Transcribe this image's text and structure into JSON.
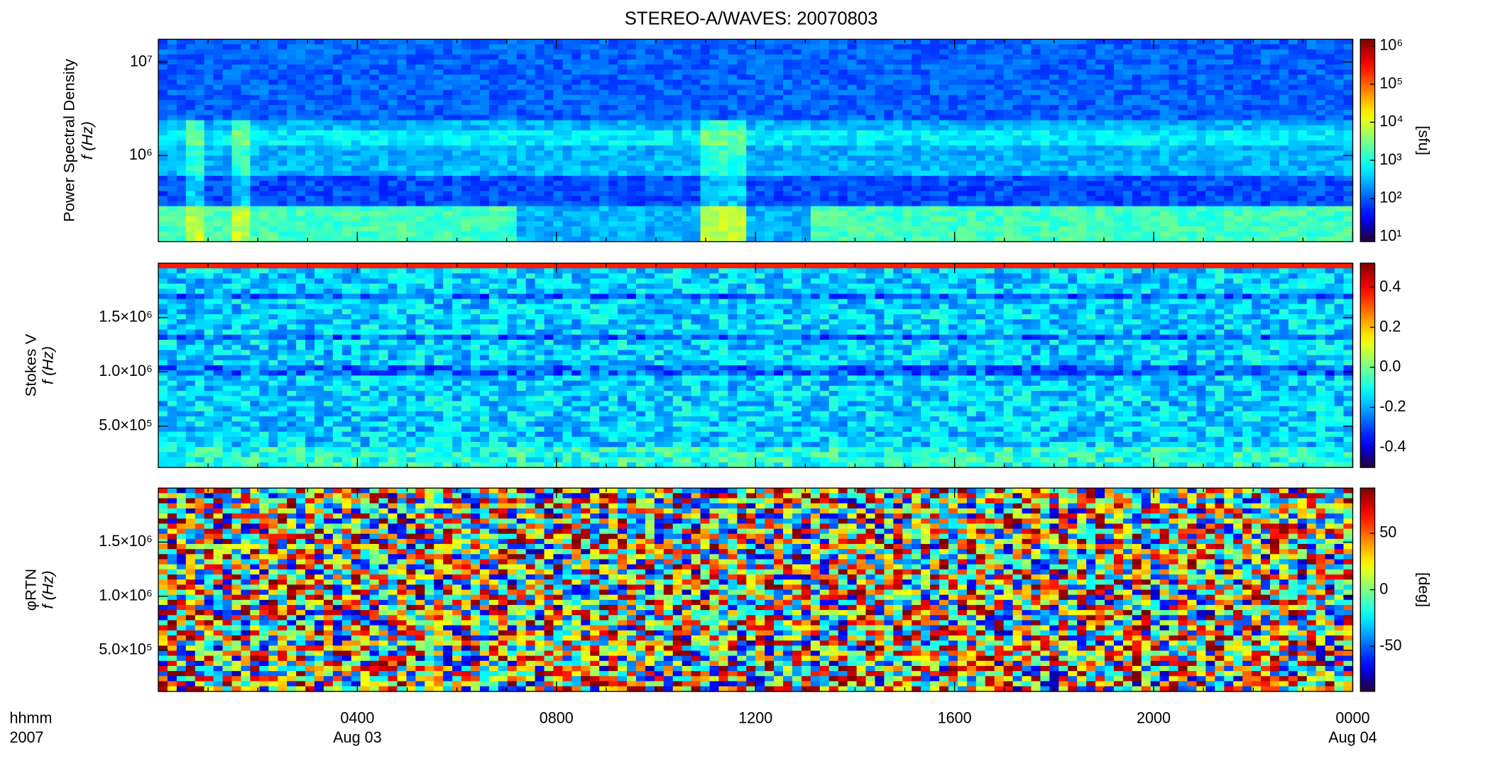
{
  "title": "STEREO-A/WAVES: 20070803",
  "chart_data": [
    {
      "type": "heatmap",
      "ylabel": [
        "Power Spectral Density",
        "f (Hz)"
      ],
      "ylog": true,
      "ylim": [
        120000,
        17500000
      ],
      "yticks": [
        {
          "value": 1000000,
          "label": "10⁶"
        },
        {
          "value": 10000000,
          "label": "10⁷"
        }
      ],
      "xlim": [
        0,
        24
      ],
      "clog": true,
      "clim": [
        7.4,
        1500000
      ],
      "cticks": [
        {
          "value": 10,
          "label": "10¹"
        },
        {
          "value": 100,
          "label": "10²"
        },
        {
          "value": 1000,
          "label": "10³"
        },
        {
          "value": 10000,
          "label": "10⁴"
        },
        {
          "value": 100000,
          "label": "10⁵"
        },
        {
          "value": 1000000,
          "label": "10⁶"
        }
      ],
      "colorbar_label": "[sfu]"
    },
    {
      "type": "heatmap",
      "ylabel": [
        "Stokes V",
        "f (Hz)"
      ],
      "ylog": false,
      "ylim": [
        120000,
        2000000
      ],
      "yticks": [
        {
          "value": 500000,
          "label": "5.0×10⁵"
        },
        {
          "value": 1000000,
          "label": "1.0×10⁶"
        },
        {
          "value": 1500000,
          "label": "1.5×10⁶"
        }
      ],
      "xlim": [
        0,
        24
      ],
      "clog": false,
      "clim": [
        -0.5,
        0.52
      ],
      "cticks": [
        -0.4,
        -0.2,
        {
          "value": 0,
          "label": "0.0"
        },
        0.2,
        0.4
      ]
    },
    {
      "type": "heatmap",
      "ylabel": [
        "φRTN",
        "f (Hz)"
      ],
      "ylog": false,
      "ylim": [
        120000,
        2000000
      ],
      "yticks": [
        {
          "value": 500000,
          "label": "5.0×10⁵"
        },
        {
          "value": 1000000,
          "label": "1.0×10⁶"
        },
        {
          "value": 1500000,
          "label": "1.5×10⁶"
        }
      ],
      "xlim": [
        0,
        24
      ],
      "xticks": [
        {
          "value": 4,
          "label": "0400"
        },
        {
          "value": 8,
          "label": "0800"
        },
        {
          "value": 12,
          "label": "1200"
        },
        {
          "value": 16,
          "label": "1600"
        },
        {
          "value": 20,
          "label": "2000"
        },
        {
          "value": 24,
          "label": "0000"
        }
      ],
      "date_labels": [
        {
          "value": 4,
          "label": "Aug 03"
        },
        {
          "value": 24,
          "label": "Aug 04"
        }
      ],
      "xlabel": [
        "hhmm",
        "2007"
      ],
      "clog": false,
      "clim": [
        -90,
        90
      ],
      "cticks": [
        -50,
        0,
        50
      ],
      "colorbar_label": "[deg]"
    }
  ]
}
